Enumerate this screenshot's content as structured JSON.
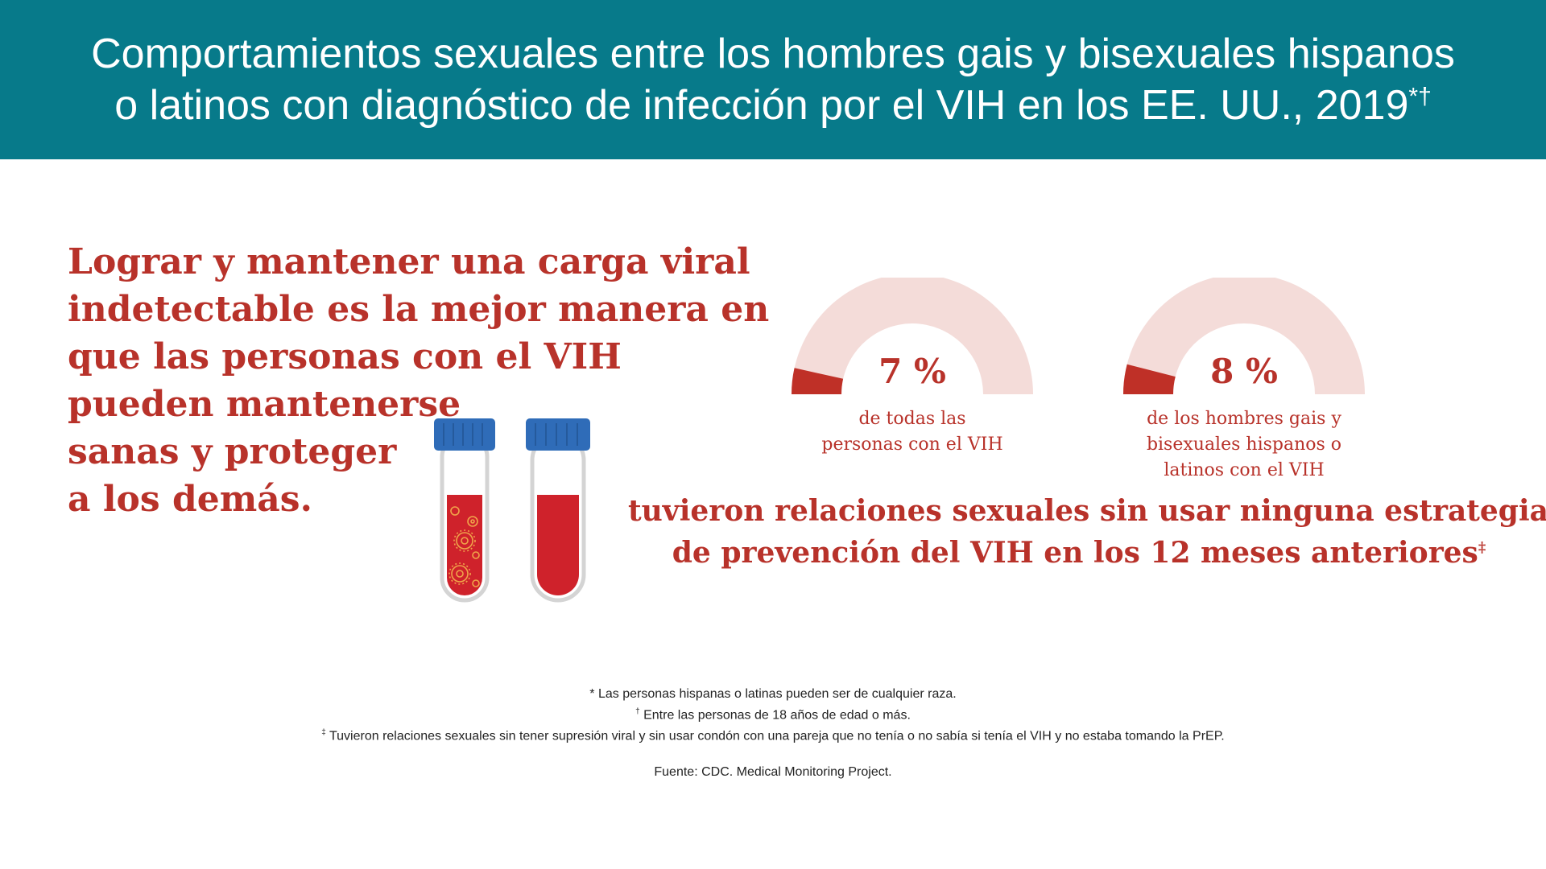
{
  "header": {
    "title_line1": "Comportamientos sexuales entre los hombres gais y bisexuales hispanos",
    "title_line2": "o latinos con diagnóstico de infección por el VIH en los EE. UU., 2019",
    "title_marks": "*†"
  },
  "lead": {
    "line1": "Lograr y mantener una carga viral",
    "line2": "indetectable es la mejor manera en",
    "line3": "que las personas con el VIH",
    "line4": "pueden mantenerse",
    "line5": "sanas y proteger",
    "line6": "a los demás."
  },
  "chart_data": {
    "type": "gauge",
    "gauges": [
      {
        "value": 7,
        "label": "7 %",
        "caption_lines": [
          "de todas las",
          "personas con el VIH"
        ]
      },
      {
        "value": 8,
        "label": "8 %",
        "caption_lines": [
          "de los hombres gais y",
          "bisexuales hispanos o",
          "latinos con el VIH"
        ]
      }
    ],
    "max": 100,
    "colors": {
      "fill": "#bf3027",
      "track": "#f4dcd9"
    }
  },
  "result": {
    "line1": "tuvieron relaciones sexuales sin usar ninguna estrategia",
    "line2": "de prevención del VIH en los 12 meses anteriores",
    "mark": "‡"
  },
  "footnotes": {
    "note1_mark": "*",
    "note1": "Las personas hispanas o latinas pueden ser de cualquier raza.",
    "note2_mark": "†",
    "note2": "Entre las personas de 18 años de edad o más.",
    "note3_mark": "‡",
    "note3": "Tuvieron relaciones sexuales sin tener supresión viral y sin usar condón con una pareja que no tenía o no sabía si tenía el VIH y no estaba tomando la PrEP.",
    "source": "Fuente: CDC. Medical Monitoring Project."
  },
  "colors": {
    "header_bg": "#077a8a",
    "accent_red": "#b8322a",
    "tube_cap": "#2f6cb8",
    "tube_liquid": "#cf222b"
  }
}
